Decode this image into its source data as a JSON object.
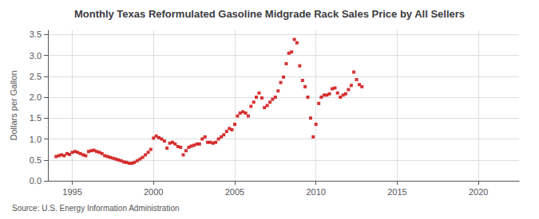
{
  "chart_data": {
    "type": "scatter",
    "title": "Monthly Texas Reformulated Gasoline Midgrade Rack Sales Price by All Sellers",
    "ylabel": "Dollars per Gallon",
    "source": "Source: U.S. Energy Information Administration",
    "color": "#cc0000",
    "marker": "square",
    "grid": true,
    "xlim": [
      1993.5,
      2022.5
    ],
    "ylim": [
      0.0,
      3.6
    ],
    "xticks": [
      1995,
      2000,
      2005,
      2010,
      2015,
      2020
    ],
    "yticks": [
      {
        "value": 0.0,
        "label": "0.0"
      },
      0.5,
      {
        "value": 1.0,
        "label": "1.0"
      },
      1.5,
      {
        "value": 2.0,
        "label": "2.0"
      },
      2.5,
      {
        "value": 3.0,
        "label": "3.0"
      },
      3.5
    ],
    "x": [
      1994.0,
      1994.17,
      1994.33,
      1994.5,
      1994.67,
      1994.83,
      1995.0,
      1995.17,
      1995.33,
      1995.5,
      1995.67,
      1995.83,
      1996.0,
      1996.17,
      1996.33,
      1996.5,
      1996.67,
      1996.83,
      1997.0,
      1997.17,
      1997.33,
      1997.5,
      1997.67,
      1997.83,
      1998.0,
      1998.17,
      1998.33,
      1998.5,
      1998.67,
      1998.83,
      1999.0,
      1999.17,
      1999.33,
      1999.5,
      1999.67,
      1999.83,
      2000.0,
      2000.17,
      2000.33,
      2000.5,
      2000.67,
      2000.83,
      2001.0,
      2001.17,
      2001.33,
      2001.5,
      2001.67,
      2001.83,
      2002.0,
      2002.17,
      2002.33,
      2002.5,
      2002.67,
      2002.83,
      2003.0,
      2003.17,
      2003.33,
      2003.5,
      2003.67,
      2003.83,
      2004.0,
      2004.17,
      2004.33,
      2004.5,
      2004.67,
      2004.83,
      2005.0,
      2005.17,
      2005.33,
      2005.5,
      2005.67,
      2005.83,
      2006.0,
      2006.17,
      2006.33,
      2006.5,
      2006.67,
      2006.83,
      2007.0,
      2007.17,
      2007.33,
      2007.5,
      2007.67,
      2007.83,
      2008.0,
      2008.17,
      2008.33,
      2008.5,
      2008.67,
      2008.83,
      2009.0,
      2009.17,
      2009.33,
      2009.5,
      2009.67,
      2009.83,
      2010.0,
      2010.17,
      2010.33,
      2010.5,
      2010.67,
      2010.83,
      2011.0,
      2011.17,
      2011.33,
      2011.5,
      2011.67,
      2011.83,
      2012.0,
      2012.17,
      2012.33,
      2012.5,
      2012.67,
      2012.83
    ],
    "values": [
      0.58,
      0.6,
      0.62,
      0.6,
      0.65,
      0.63,
      0.68,
      0.7,
      0.68,
      0.65,
      0.62,
      0.6,
      0.7,
      0.72,
      0.73,
      0.7,
      0.68,
      0.65,
      0.6,
      0.58,
      0.56,
      0.54,
      0.52,
      0.5,
      0.48,
      0.45,
      0.44,
      0.42,
      0.42,
      0.44,
      0.48,
      0.52,
      0.56,
      0.62,
      0.68,
      0.75,
      1.02,
      1.07,
      1.03,
      1.0,
      0.95,
      0.78,
      0.9,
      0.92,
      0.88,
      0.82,
      0.8,
      0.62,
      0.72,
      0.8,
      0.83,
      0.85,
      0.88,
      0.88,
      1.0,
      1.05,
      0.92,
      0.92,
      0.9,
      0.92,
      1.0,
      1.05,
      1.1,
      1.18,
      1.25,
      1.22,
      1.35,
      1.55,
      1.62,
      1.65,
      1.62,
      1.55,
      1.78,
      1.88,
      2.0,
      2.1,
      1.98,
      1.75,
      1.8,
      1.88,
      1.95,
      2.0,
      2.15,
      2.35,
      2.48,
      2.8,
      3.05,
      3.08,
      3.38,
      3.3,
      2.75,
      2.4,
      2.25,
      2.0,
      1.5,
      1.05,
      1.35,
      1.85,
      2.0,
      2.05,
      2.05,
      2.08,
      2.2,
      2.22,
      2.1,
      2.0,
      2.05,
      2.08,
      2.18,
      2.28,
      2.6,
      2.42,
      2.3,
      2.25
    ]
  }
}
